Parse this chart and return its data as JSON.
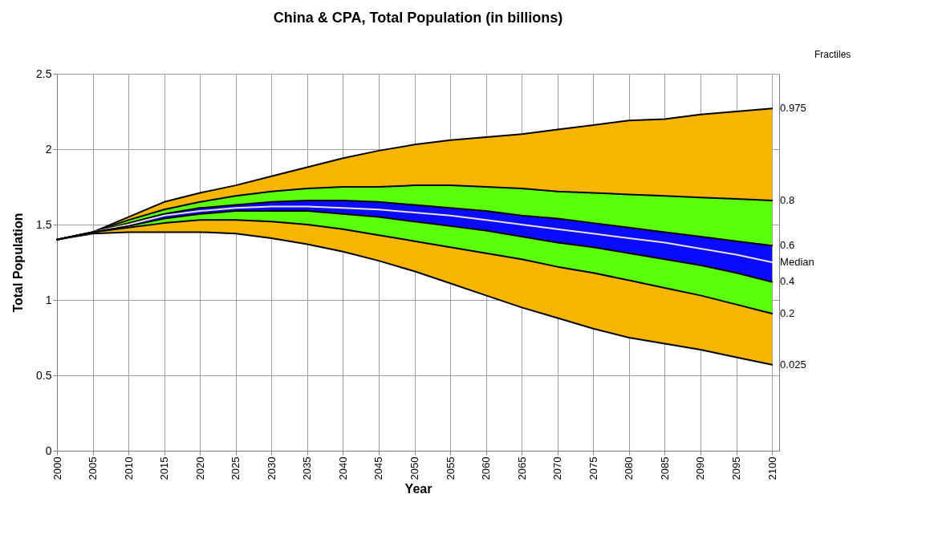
{
  "chart_data": {
    "type": "area",
    "title": "China & CPA, Total Population (in billions)",
    "xlabel": "Year",
    "ylabel": "Total Population",
    "legend_title": "Fractiles",
    "x": [
      2000,
      2005,
      2010,
      2015,
      2020,
      2025,
      2030,
      2035,
      2040,
      2045,
      2050,
      2055,
      2060,
      2065,
      2070,
      2075,
      2080,
      2085,
      2090,
      2095,
      2100
    ],
    "xlim": [
      2000,
      2101
    ],
    "xticks": [
      2000,
      2005,
      2010,
      2015,
      2020,
      2025,
      2030,
      2035,
      2040,
      2045,
      2050,
      2055,
      2060,
      2065,
      2070,
      2075,
      2080,
      2085,
      2090,
      2095,
      2100
    ],
    "ylim": [
      0,
      2.5
    ],
    "yticks": [
      0,
      0.5,
      1,
      1.5,
      2,
      2.5
    ],
    "grid": true,
    "series": [
      {
        "name": "0.975",
        "color": "#f7b500",
        "values": [
          1.4,
          1.45,
          1.55,
          1.65,
          1.71,
          1.76,
          1.82,
          1.88,
          1.94,
          1.99,
          2.03,
          2.06,
          2.08,
          2.1,
          2.13,
          2.16,
          2.19,
          2.2,
          2.23,
          2.25,
          2.27
        ]
      },
      {
        "name": "0.8",
        "color": "#5cff0a",
        "values": [
          1.4,
          1.45,
          1.53,
          1.6,
          1.65,
          1.69,
          1.72,
          1.74,
          1.75,
          1.75,
          1.76,
          1.76,
          1.75,
          1.74,
          1.72,
          1.71,
          1.7,
          1.69,
          1.68,
          1.67,
          1.66
        ]
      },
      {
        "name": "0.6",
        "color": "#0a0aff",
        "values": [
          1.4,
          1.45,
          1.51,
          1.57,
          1.61,
          1.63,
          1.65,
          1.66,
          1.66,
          1.65,
          1.63,
          1.61,
          1.59,
          1.56,
          1.54,
          1.51,
          1.48,
          1.45,
          1.42,
          1.39,
          1.36
        ]
      },
      {
        "type": "line",
        "name": "Median",
        "color": "#e8e0d0",
        "values": [
          1.4,
          1.45,
          1.5,
          1.56,
          1.59,
          1.61,
          1.62,
          1.62,
          1.61,
          1.6,
          1.58,
          1.56,
          1.53,
          1.5,
          1.47,
          1.44,
          1.41,
          1.38,
          1.34,
          1.3,
          1.25
        ]
      },
      {
        "type": "line",
        "name": "0.4",
        "color": "#000000",
        "values": [
          1.4,
          1.45,
          1.49,
          1.54,
          1.57,
          1.59,
          1.59,
          1.59,
          1.57,
          1.55,
          1.52,
          1.49,
          1.46,
          1.42,
          1.38,
          1.35,
          1.31,
          1.27,
          1.23,
          1.18,
          1.12
        ]
      },
      {
        "type": "line",
        "name": "0.2",
        "color": "#000000",
        "values": [
          1.4,
          1.45,
          1.48,
          1.51,
          1.53,
          1.53,
          1.52,
          1.5,
          1.47,
          1.43,
          1.39,
          1.35,
          1.31,
          1.27,
          1.22,
          1.18,
          1.13,
          1.08,
          1.03,
          0.97,
          0.91
        ]
      },
      {
        "type": "line",
        "name": "0.025",
        "color": "#000000",
        "values": [
          1.4,
          1.44,
          1.45,
          1.45,
          1.45,
          1.44,
          1.41,
          1.37,
          1.32,
          1.26,
          1.19,
          1.11,
          1.03,
          0.95,
          0.88,
          0.81,
          0.75,
          0.71,
          0.67,
          0.62,
          0.57
        ]
      }
    ]
  }
}
